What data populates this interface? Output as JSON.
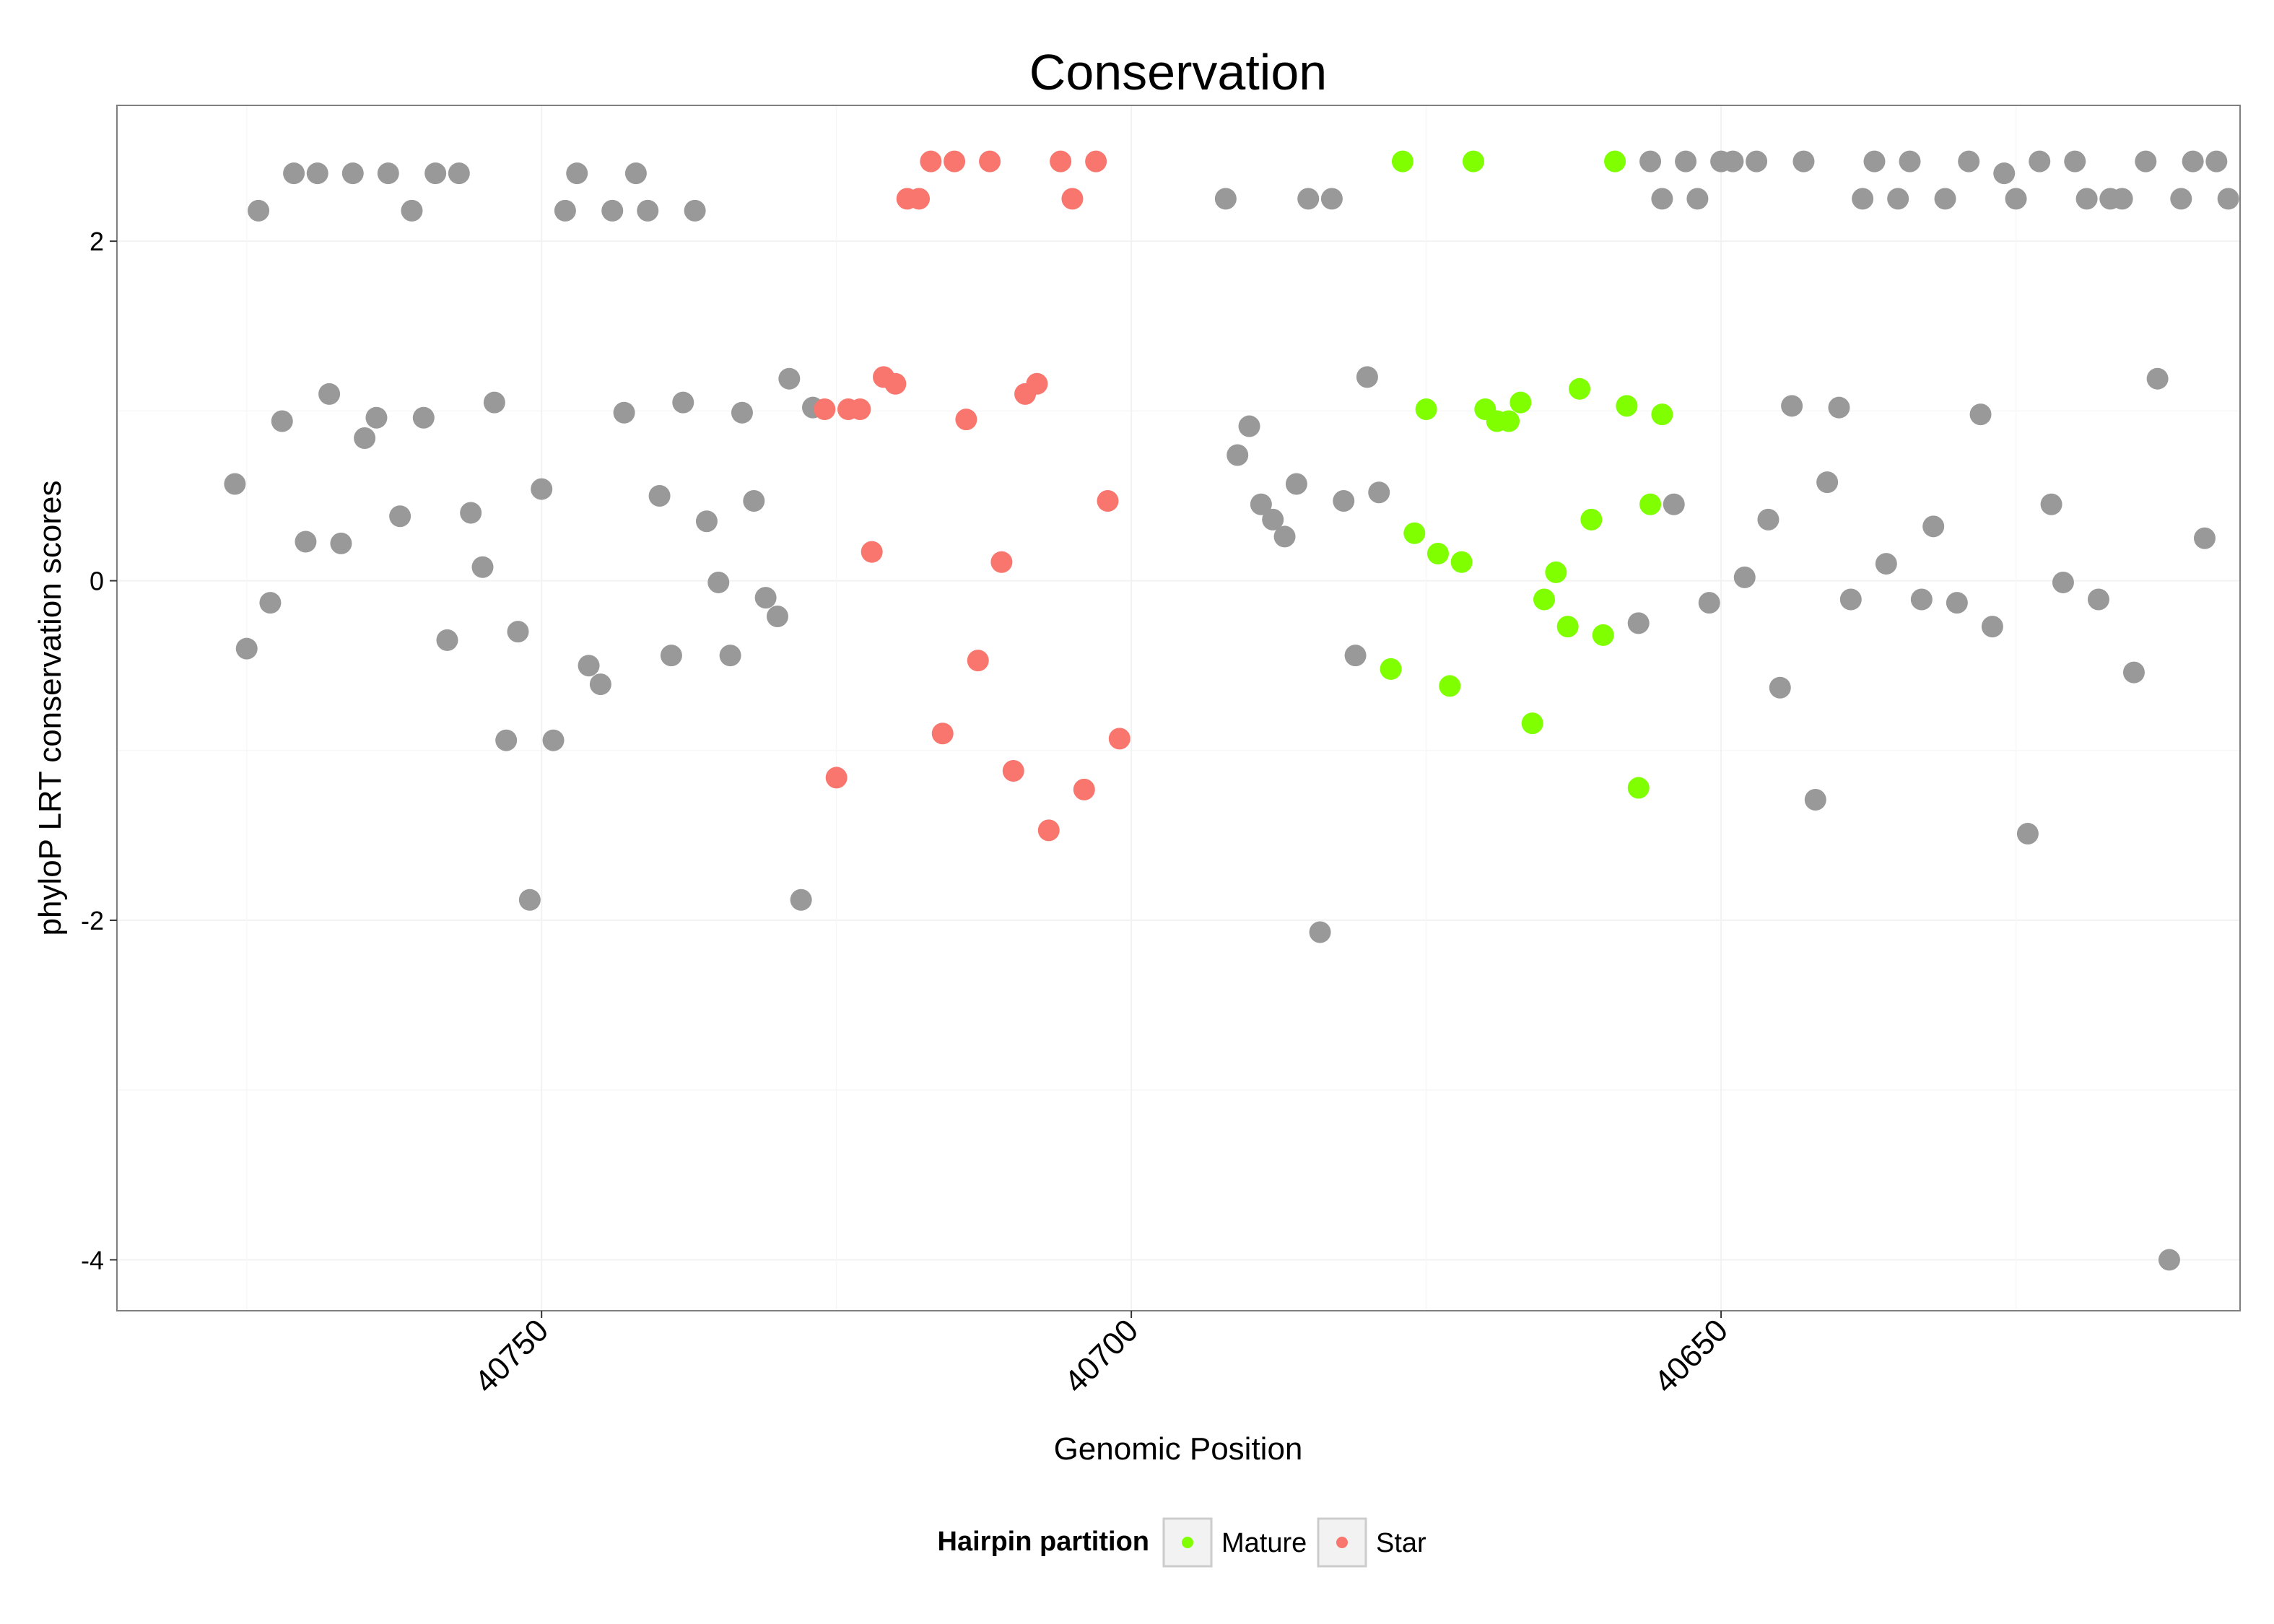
{
  "chart_data": {
    "type": "scatter",
    "title": "Conservation",
    "xlabel": "Genomic Position",
    "ylabel": "phyloP LRT conservation scores",
    "x_reversed": true,
    "xlim": [
      40786,
      40606
    ],
    "ylim": [
      -4.3,
      2.8
    ],
    "x_breaks": [
      40750,
      40700,
      40650
    ],
    "y_breaks": [
      -4,
      -2,
      0,
      2
    ],
    "grid": true,
    "legend": {
      "title": "Hairpin partition",
      "position": "bottom",
      "entries": [
        {
          "key": "Mature",
          "label": "Mature"
        },
        {
          "key": "Star",
          "label": "Star"
        }
      ]
    },
    "colors": {
      "Other": "#999999",
      "Mature": "#7fff00",
      "Star": "#f8766d"
    },
    "series": [
      {
        "name": "Other",
        "points": [
          [
            40776,
            0.57
          ],
          [
            40775,
            -0.4
          ],
          [
            40774,
            2.18
          ],
          [
            40773,
            -0.13
          ],
          [
            40772,
            0.94
          ],
          [
            40771,
            2.4
          ],
          [
            40770,
            0.23
          ],
          [
            40769,
            2.4
          ],
          [
            40768,
            1.1
          ],
          [
            40767,
            0.22
          ],
          [
            40766,
            2.4
          ],
          [
            40765,
            0.84
          ],
          [
            40764,
            0.96
          ],
          [
            40763,
            2.4
          ],
          [
            40762,
            0.38
          ],
          [
            40761,
            2.18
          ],
          [
            40760,
            0.96
          ],
          [
            40759,
            2.4
          ],
          [
            40758,
            -0.35
          ],
          [
            40757,
            2.4
          ],
          [
            40756,
            0.4
          ],
          [
            40755,
            0.08
          ],
          [
            40754,
            1.05
          ],
          [
            40753,
            -0.94
          ],
          [
            40752,
            -0.3
          ],
          [
            40751,
            -1.88
          ],
          [
            40750,
            0.54
          ],
          [
            40749,
            -0.94
          ],
          [
            40748,
            2.18
          ],
          [
            40747,
            2.4
          ],
          [
            40746,
            -0.5
          ],
          [
            40745,
            -0.61
          ],
          [
            40744,
            2.18
          ],
          [
            40743,
            0.99
          ],
          [
            40742,
            2.4
          ],
          [
            40741,
            2.18
          ],
          [
            40740,
            0.5
          ],
          [
            40739,
            -0.44
          ],
          [
            40738,
            1.05
          ],
          [
            40737,
            2.18
          ],
          [
            40736,
            0.35
          ],
          [
            40735,
            -0.01
          ],
          [
            40734,
            -0.44
          ],
          [
            40733,
            0.99
          ],
          [
            40732,
            0.47
          ],
          [
            40731,
            -0.1
          ],
          [
            40730,
            -0.21
          ],
          [
            40729,
            1.19
          ],
          [
            40728,
            -1.88
          ],
          [
            40727,
            1.02
          ],
          [
            40692,
            2.25
          ],
          [
            40691,
            0.74
          ],
          [
            40690,
            0.91
          ],
          [
            40689,
            0.45
          ],
          [
            40688,
            0.36
          ],
          [
            40687,
            0.26
          ],
          [
            40686,
            0.57
          ],
          [
            40685,
            2.25
          ],
          [
            40684,
            -2.07
          ],
          [
            40683,
            2.25
          ],
          [
            40682,
            0.47
          ],
          [
            40681,
            -0.44
          ],
          [
            40680,
            1.2
          ],
          [
            40679,
            0.52
          ],
          [
            40657,
            -0.25
          ],
          [
            40656,
            2.47
          ],
          [
            40655,
            2.25
          ],
          [
            40654,
            0.45
          ],
          [
            40653,
            2.47
          ],
          [
            40652,
            2.25
          ],
          [
            40651,
            -0.13
          ],
          [
            40650,
            2.47
          ],
          [
            40649,
            2.47
          ],
          [
            40648,
            0.02
          ],
          [
            40647,
            2.47
          ],
          [
            40646,
            0.36
          ],
          [
            40645,
            -0.63
          ],
          [
            40644,
            1.03
          ],
          [
            40643,
            2.47
          ],
          [
            40642,
            -1.29
          ],
          [
            40641,
            0.58
          ],
          [
            40640,
            1.02
          ],
          [
            40639,
            -0.11
          ],
          [
            40638,
            2.25
          ],
          [
            40637,
            2.47
          ],
          [
            40636,
            0.1
          ],
          [
            40635,
            2.25
          ],
          [
            40634,
            2.47
          ],
          [
            40633,
            -0.11
          ],
          [
            40632,
            0.32
          ],
          [
            40631,
            2.25
          ],
          [
            40630,
            -0.13
          ],
          [
            40629,
            2.47
          ],
          [
            40628,
            0.98
          ],
          [
            40627,
            -0.27
          ],
          [
            40626,
            2.4
          ],
          [
            40625,
            2.25
          ],
          [
            40624,
            -1.49
          ],
          [
            40623,
            2.47
          ],
          [
            40622,
            0.45
          ],
          [
            40621,
            -0.01
          ],
          [
            40620,
            2.47
          ],
          [
            40619,
            2.25
          ],
          [
            40618,
            -0.11
          ],
          [
            40617,
            2.25
          ],
          [
            40616,
            2.25
          ],
          [
            40615,
            -0.54
          ],
          [
            40614,
            2.47
          ],
          [
            40613,
            1.19
          ],
          [
            40612,
            -4.0
          ],
          [
            40611,
            2.25
          ],
          [
            40610,
            2.47
          ],
          [
            40609,
            0.25
          ],
          [
            40608,
            2.47
          ],
          [
            40607,
            2.25
          ]
        ]
      },
      {
        "name": "Star",
        "points": [
          [
            40726,
            1.01
          ],
          [
            40725,
            -1.16
          ],
          [
            40724,
            1.01
          ],
          [
            40723,
            1.01
          ],
          [
            40722,
            0.17
          ],
          [
            40721,
            1.2
          ],
          [
            40720,
            1.16
          ],
          [
            40719,
            2.25
          ],
          [
            40718,
            2.25
          ],
          [
            40717,
            2.47
          ],
          [
            40716,
            -0.9
          ],
          [
            40715,
            2.47
          ],
          [
            40714,
            0.95
          ],
          [
            40713,
            -0.47
          ],
          [
            40712,
            2.47
          ],
          [
            40711,
            0.11
          ],
          [
            40710,
            -1.12
          ],
          [
            40709,
            1.1
          ],
          [
            40708,
            1.16
          ],
          [
            40707,
            -1.47
          ],
          [
            40706,
            2.47
          ],
          [
            40705,
            2.25
          ],
          [
            40704,
            -1.23
          ],
          [
            40703,
            2.47
          ],
          [
            40702,
            0.47
          ],
          [
            40701,
            -0.93
          ]
        ]
      },
      {
        "name": "Mature",
        "points": [
          [
            40678,
            -0.52
          ],
          [
            40677,
            2.47
          ],
          [
            40676,
            0.28
          ],
          [
            40675,
            1.01
          ],
          [
            40674,
            0.16
          ],
          [
            40673,
            -0.62
          ],
          [
            40672,
            0.11
          ],
          [
            40671,
            2.47
          ],
          [
            40670,
            1.01
          ],
          [
            40669,
            0.94
          ],
          [
            40668,
            0.94
          ],
          [
            40667,
            1.05
          ],
          [
            40666,
            -0.84
          ],
          [
            40665,
            -0.11
          ],
          [
            40664,
            0.05
          ],
          [
            40663,
            -0.27
          ],
          [
            40662,
            1.13
          ],
          [
            40661,
            0.36
          ],
          [
            40660,
            -0.32
          ],
          [
            40659,
            2.47
          ],
          [
            40658,
            1.03
          ],
          [
            40657,
            -1.22
          ],
          [
            40656,
            0.45
          ],
          [
            40655,
            0.98
          ]
        ]
      }
    ]
  }
}
